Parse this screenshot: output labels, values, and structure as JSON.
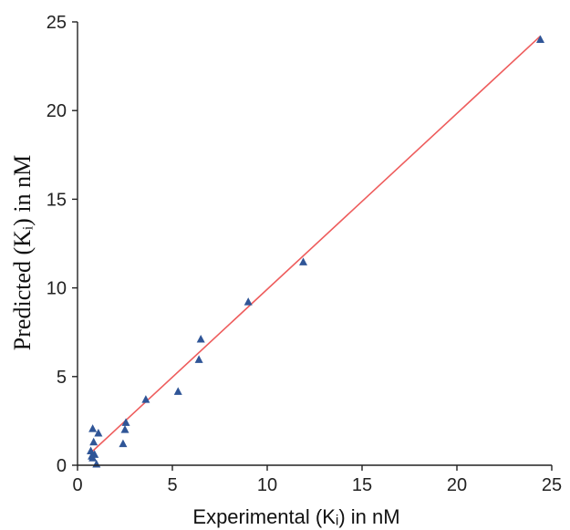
{
  "chart_data": {
    "type": "scatter",
    "xlabel": "Experimental (Kᵢ) in nM",
    "ylabel": "Predicted (Kᵢ) in nM",
    "xlim": [
      0,
      25
    ],
    "ylim": [
      0,
      25
    ],
    "x_ticks": [
      "0",
      "5",
      "10",
      "15",
      "20",
      "25"
    ],
    "y_ticks": [
      "0",
      "5",
      "10",
      "15",
      "20",
      "25"
    ],
    "grid": false,
    "legend": "none",
    "colors": {
      "points": "#2f5597",
      "line": "#ee5c5c",
      "axis": "#222222"
    },
    "series": [
      {
        "kind": "points",
        "x": [
          0.7,
          0.75,
          0.8,
          0.8,
          0.85,
          0.9,
          1.0,
          1.1,
          2.4,
          2.5,
          2.55,
          3.6,
          5.3,
          6.4,
          6.5,
          9.0,
          11.9,
          24.4
        ],
        "y": [
          0.8,
          0.5,
          2.05,
          0.4,
          1.3,
          0.6,
          0.05,
          1.8,
          1.2,
          2.0,
          2.4,
          3.7,
          4.15,
          5.95,
          7.1,
          9.2,
          11.45,
          24.0
        ]
      },
      {
        "kind": "trendline",
        "x": [
          0.7,
          24.4
        ],
        "y": [
          0.7,
          24.2
        ]
      }
    ]
  }
}
